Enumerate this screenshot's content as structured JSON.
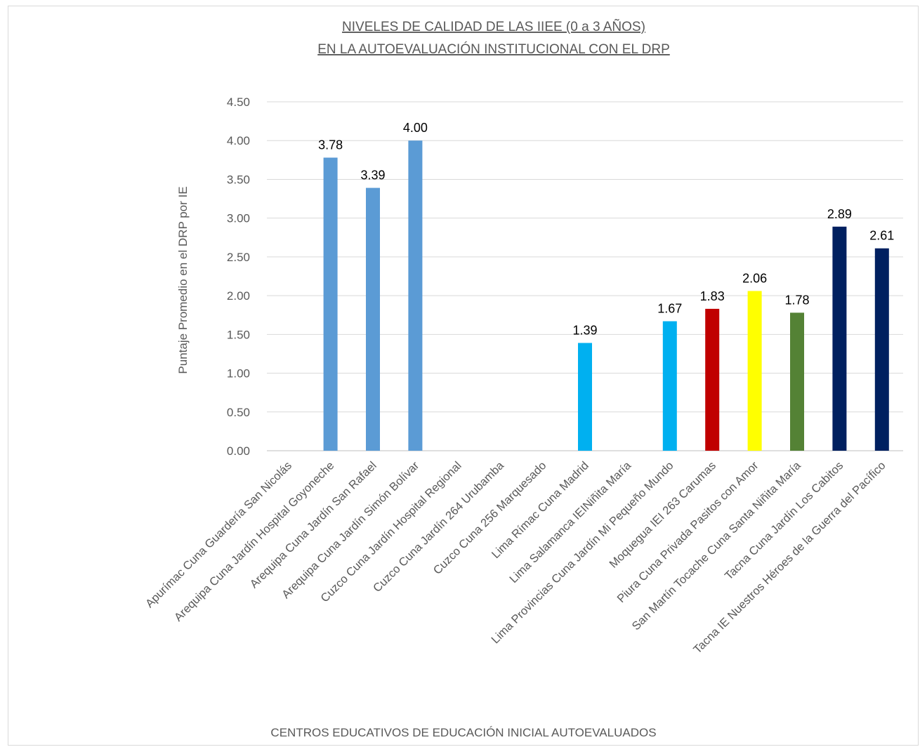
{
  "chart_data": {
    "type": "bar",
    "title_line1": "NIVELES DE CALIDAD DE LAS IIEE (0 a 3 AÑOS)",
    "title_line2": "EN LA AUTOEVALUACIÓN INSTITUCIONAL CON EL DRP",
    "xlabel": "CENTROS EDUCATIVOS DE EDUCACIÓN INICIAL AUTOEVALUADOS",
    "ylabel": "Puntaje Promedio en el DRP por IE",
    "ylim": [
      0,
      4.5
    ],
    "ytick_step": 0.5,
    "grid": true,
    "categories": [
      "Apurímac Cuna Guardería San Nicolás",
      "Arequipa Cuna Jardín Hospital Goyoneche",
      "Arequipa Cuna Jardín San Rafael",
      "Arequipa Cuna Jardín Simón Bolívar",
      "Cuzco Cuna Jardín Hospital Regional",
      "Cuzco Cuna Jardín 264 Urubamba",
      "Cuzco Cuna 256 Marquesado",
      "Lima Rímac Cuna Madrid",
      "Lima Salamanca IEINiñita María",
      "Lima Provincias Cuna Jardín Mi Pequeño Mundo",
      "Moquegua IEI 263 Carumas",
      "Piura Cuna Privada Pasitos con Amor",
      "San Martín Tocache Cuna Santa Niñita María",
      "Tacna Cuna Jardín Los Cabitos",
      "Tacna IE Nuestros Héroes de la Guerra del Pacífico"
    ],
    "values": [
      null,
      3.78,
      3.39,
      4.0,
      null,
      null,
      null,
      1.39,
      null,
      1.67,
      1.83,
      2.06,
      1.78,
      2.89,
      2.61
    ],
    "value_labels": [
      "",
      "3.78",
      "3.39",
      "4.00",
      "",
      "",
      "",
      "1.39",
      "",
      "1.67",
      "1.83",
      "2.06",
      "1.78",
      "2.89",
      "2.61"
    ],
    "colors": [
      "#5B9BD5",
      "#5B9BD5",
      "#5B9BD5",
      "#5B9BD5",
      "#5B9BD5",
      "#5B9BD5",
      "#5B9BD5",
      "#00B0F0",
      "#00B0F0",
      "#00B0F0",
      "#C00000",
      "#FFFF00",
      "#548235",
      "#002060",
      "#002060"
    ]
  }
}
